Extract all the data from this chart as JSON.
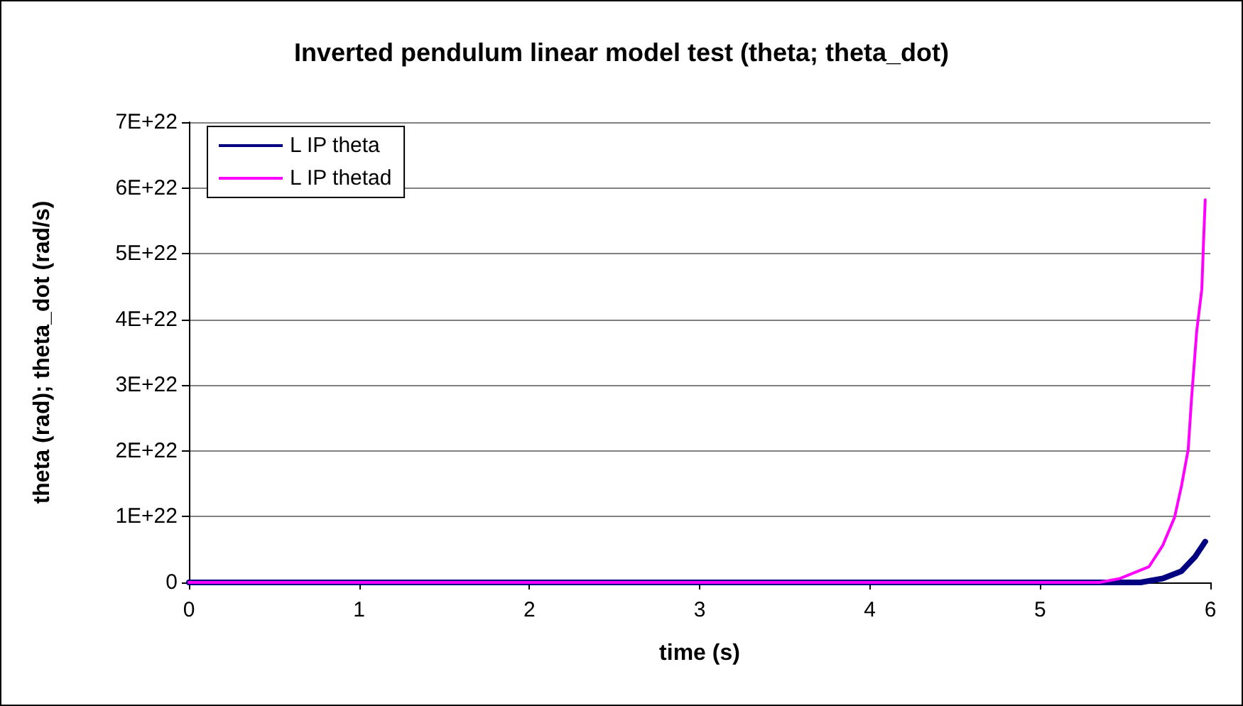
{
  "chart_data": {
    "type": "line",
    "title": "Inverted pendulum linear model test (theta; theta_dot)",
    "xlabel": "time (s)",
    "ylabel": "theta (rad); theta_dot (rad/s)",
    "series": [
      {
        "name": "L IP theta",
        "color": "#000080",
        "x": [
          0,
          5.59,
          5.72,
          5.83,
          5.91,
          5.97
        ],
        "values": [
          0,
          0,
          6e+20,
          1.7e+21,
          3.9e+21,
          6.2e+21
        ]
      },
      {
        "name": "L IP thetad",
        "color": "#ff00ff",
        "x": [
          0,
          5.35,
          5.47,
          5.64,
          5.72,
          5.79,
          5.83,
          5.87,
          5.89,
          5.92,
          5.95,
          5.96,
          5.97
        ],
        "values": [
          0,
          0,
          6e+20,
          2.4e+21,
          5.6e+21,
          9.9e+21,
          1.46e+22,
          2.02e+22,
          2.81e+22,
          3.82e+22,
          4.46e+22,
          5.17e+22,
          5.82e+22
        ]
      }
    ],
    "xlim": [
      0,
      6
    ],
    "xticks": [
      0,
      1,
      2,
      3,
      4,
      5,
      6
    ],
    "ylim": [
      0,
      7e+22
    ],
    "yticks": [
      0,
      {
        "value": 1e+22,
        "label": "1E+22"
      },
      {
        "value": 2e+22,
        "label": "2E+22"
      },
      {
        "value": 3e+22,
        "label": "3E+22"
      },
      {
        "value": 4e+22,
        "label": "4E+22"
      },
      {
        "value": 5e+22,
        "label": "5E+22"
      },
      {
        "value": 6e+22,
        "label": "6E+22"
      },
      {
        "value": 7e+22,
        "label": "7E+22"
      }
    ],
    "grid": "y",
    "legend": "top left",
    "marker": "none",
    "line_style": "solid"
  }
}
